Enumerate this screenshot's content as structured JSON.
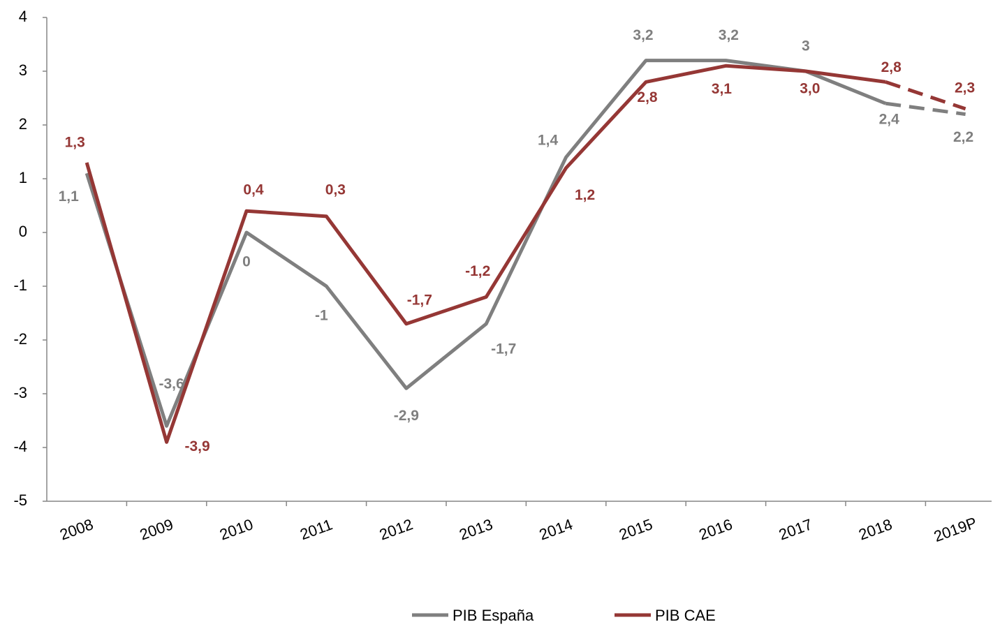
{
  "chart_data": {
    "type": "line",
    "categories": [
      "2008",
      "2009",
      "2010",
      "2011",
      "2012",
      "2013",
      "2014",
      "2015",
      "2016",
      "2017",
      "2018",
      "2019P"
    ],
    "series": [
      {
        "name": "PIB España",
        "color": "#7f7f7f",
        "dashed_last_segment": true,
        "values": [
          1.1,
          -3.6,
          0,
          -1,
          -2.9,
          -1.7,
          1.4,
          3.2,
          3.2,
          3,
          2.4,
          2.2
        ],
        "value_labels": [
          "1,1",
          "-3,6",
          "0",
          "-1",
          "-2,9",
          "-1,7",
          "1,4",
          "3,2",
          "3,2",
          "3",
          "2,4",
          "2,2"
        ]
      },
      {
        "name": "PIB CAE",
        "color": "#953735",
        "dashed_last_segment": true,
        "values": [
          1.3,
          -3.9,
          0.4,
          0.3,
          -1.7,
          -1.2,
          1.2,
          2.8,
          3.1,
          3.0,
          2.8,
          2.3
        ],
        "value_labels": [
          "1,3",
          "-3,9",
          "0,4",
          "0,3",
          "-1,7",
          "-1,2",
          "1,2",
          "2,8",
          "3,1",
          "3,0",
          "2,8",
          "2,3"
        ]
      }
    ],
    "ylim": [
      -5,
      4
    ],
    "yticks": [
      -5,
      -4,
      -3,
      -2,
      -1,
      0,
      1,
      2,
      3,
      4
    ],
    "grid": false,
    "legend": "bottom"
  }
}
